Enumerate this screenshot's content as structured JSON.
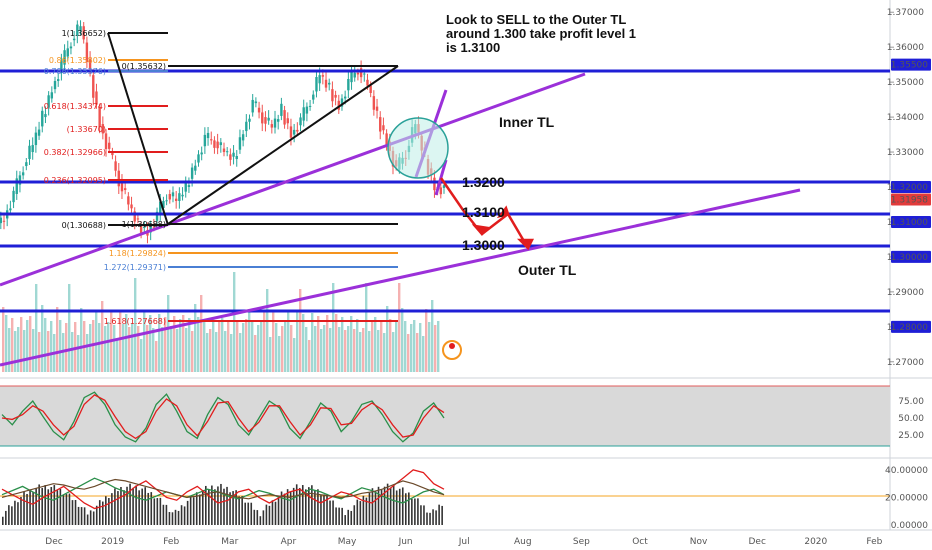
{
  "annotation": {
    "line1": "Look to SELL to the Outer TL",
    "line2": "around 1.300 take profit level  1",
    "line3": "is 1.3100"
  },
  "labels": {
    "inner_tl": "Inner TL",
    "outer_tl": "Outer TL",
    "lvl_1_32": "1.3200",
    "lvl_1_31": "1.3100",
    "lvl_1_30": "1.3000"
  },
  "fib_labels": [
    {
      "id": "f1",
      "text": "1(1.36652)",
      "color": "#111111"
    },
    {
      "id": "f086",
      "text": "0.86(1.35802)",
      "color": "#f5941e"
    },
    {
      "id": "f0786",
      "text": "0.786(1.35376)",
      "color": "#4a7fd4"
    },
    {
      "id": "f0b",
      "text": "0(1.35632)",
      "color": "#111111"
    },
    {
      "id": "f0618",
      "text": "0.618(1.34374)",
      "color": "#e11d1d"
    },
    {
      "id": "f05",
      "text": "(1.33670)",
      "color": "#e11d1d"
    },
    {
      "id": "f0382",
      "text": "0.382(1.32966)",
      "color": "#e11d1d"
    },
    {
      "id": "f0236",
      "text": "0.236(1.32095)",
      "color": "#e11d1d"
    },
    {
      "id": "f0",
      "text": "0(1.30688)",
      "color": "#111111"
    },
    {
      "id": "f1b",
      "text": "1(1.30688)",
      "color": "#111111"
    },
    {
      "id": "f118",
      "text": "1.18(1.29824)",
      "color": "#f5941e"
    },
    {
      "id": "f1272",
      "text": "1.272(1.29371)",
      "color": "#4a7fd4"
    },
    {
      "id": "f1618",
      "text": "1.618(1.27668)",
      "color": "#e11d1d"
    }
  ],
  "chart_data": {
    "type": "line",
    "instrument_note": "price chart with trendlines",
    "x_ticks": [
      "Dec",
      "2019",
      "Feb",
      "Mar",
      "Apr",
      "May",
      "Jun",
      "Jul",
      "Aug",
      "Sep",
      "Oct",
      "Nov",
      "Dec",
      "2020",
      "Feb"
    ],
    "price_axis": {
      "ticks": [
        "1.37000",
        "1.36000",
        "1.35000",
        "1.34000",
        "1.33000",
        "1.32000",
        "1.31000",
        "1.30000",
        "1.29000",
        "1.28000",
        "1.27000"
      ],
      "ylim": [
        1.2665,
        1.3735
      ]
    },
    "price_badges": [
      {
        "value": "1.35500",
        "color": "#1f1fd6"
      },
      {
        "value": "1.32000",
        "color": "#1f1fd6"
      },
      {
        "value": "1.31958",
        "color": "#e23b3b"
      },
      {
        "value": "1.31000",
        "color": "#1f1fd6"
      },
      {
        "value": "1.30000",
        "color": "#1f1fd6"
      },
      {
        "value": "1.28000",
        "color": "#1f1fd6"
      }
    ],
    "horizontal_levels": [
      1.355,
      1.32,
      1.31,
      1.3,
      1.28
    ],
    "price_series_close": [
      1.311,
      1.318,
      1.326,
      1.332,
      1.34,
      1.348,
      1.355,
      1.362,
      1.366,
      1.352,
      1.338,
      1.33,
      1.322,
      1.315,
      1.309,
      1.307,
      1.312,
      1.318,
      1.316,
      1.32,
      1.327,
      1.334,
      1.333,
      1.33,
      1.328,
      1.336,
      1.344,
      1.34,
      1.337,
      1.342,
      1.335,
      1.339,
      1.345,
      1.352,
      1.348,
      1.343,
      1.35,
      1.354,
      1.349,
      1.34,
      1.333,
      1.325,
      1.33,
      1.338,
      1.328,
      1.32,
      1.3196
    ],
    "stoch_axis": {
      "ticks": [
        "75.00",
        "50.00",
        "25.00"
      ],
      "ylim": [
        0,
        100
      ],
      "band": [
        20,
        80
      ]
    },
    "stoch_k": [
      55,
      40,
      60,
      75,
      52,
      30,
      18,
      45,
      80,
      88,
      70,
      40,
      22,
      15,
      35,
      70,
      85,
      60,
      30,
      20,
      55,
      80,
      70,
      40,
      25,
      50,
      75,
      65,
      35,
      20,
      45,
      72,
      60,
      30,
      45,
      70,
      75,
      55,
      30,
      15,
      28,
      60,
      72,
      50
    ],
    "stoch_d": [
      50,
      48,
      55,
      68,
      60,
      40,
      25,
      38,
      70,
      84,
      76,
      52,
      30,
      20,
      30,
      60,
      78,
      68,
      40,
      24,
      45,
      72,
      74,
      50,
      30,
      44,
      68,
      68,
      45,
      25,
      40,
      65,
      64,
      40,
      42,
      62,
      72,
      62,
      40,
      22,
      25,
      50,
      68,
      58
    ],
    "adx_axis": {
      "ticks": [
        "40.00000",
        "20.00000",
        "0.00000"
      ],
      "ylim": [
        0,
        45
      ]
    },
    "adx_line": 20,
    "dmi_plus": [
      22,
      25,
      28,
      24,
      20,
      18,
      22,
      26,
      30,
      34,
      31,
      27,
      24,
      20,
      18,
      21,
      24,
      22,
      20,
      23,
      26,
      24,
      21,
      19,
      22,
      25,
      23,
      20,
      18,
      22,
      26,
      24,
      21,
      19,
      23,
      27,
      25,
      21,
      18,
      16,
      20,
      24,
      26,
      22
    ],
    "dmi_minus": [
      26,
      22,
      18,
      15,
      20,
      24,
      28,
      22,
      16,
      12,
      14,
      18,
      22,
      28,
      32,
      26,
      20,
      18,
      24,
      28,
      22,
      16,
      18,
      24,
      26,
      20,
      16,
      20,
      24,
      26,
      20,
      16,
      20,
      24,
      22,
      18,
      16,
      22,
      28,
      34,
      40,
      38,
      30,
      26
    ],
    "adx": [
      20,
      22,
      24,
      26,
      28,
      30,
      29,
      27,
      26,
      28,
      31,
      33,
      32,
      30,
      28,
      26,
      24,
      22,
      20,
      21,
      23,
      24,
      22,
      20,
      19,
      21,
      22,
      21,
      20,
      22,
      23,
      22,
      21,
      20,
      21,
      23,
      24,
      26,
      29,
      32,
      30,
      27,
      24,
      22
    ]
  }
}
